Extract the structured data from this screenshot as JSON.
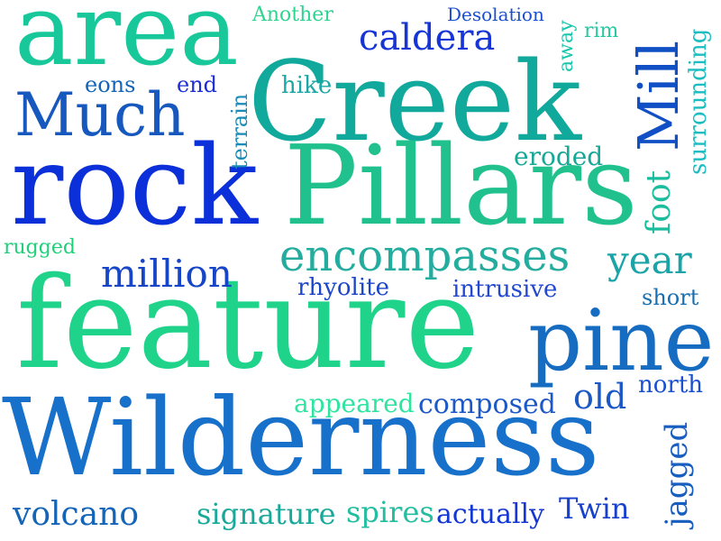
{
  "words": {
    "area": {
      "text": "area",
      "color": "#18c89a"
    },
    "Another": {
      "text": "Another",
      "color": "#2fd48f"
    },
    "Desolation": {
      "text": "Desolation",
      "color": "#1a4fd1"
    },
    "caldera": {
      "text": "caldera",
      "color": "#1734d6"
    },
    "rim": {
      "text": "rim",
      "color": "#27c7a0"
    },
    "away": {
      "text": "away",
      "color": "#19c6ab"
    },
    "Creek": {
      "text": "Creek",
      "color": "#10a99b"
    },
    "Mill": {
      "text": "Mill",
      "color": "#1150c4"
    },
    "surrounding": {
      "text": "surrounding",
      "color": "#1bbdc0"
    },
    "eons": {
      "text": "eons",
      "color": "#1464b8"
    },
    "end": {
      "text": "end",
      "color": "#1d2fd2"
    },
    "hike": {
      "text": "hike",
      "color": "#1ba7a5"
    },
    "Much": {
      "text": "Much",
      "color": "#1658be"
    },
    "terrain": {
      "text": "terrain",
      "color": "#1a8bb7"
    },
    "eroded": {
      "text": "eroded",
      "color": "#17a796"
    },
    "foot": {
      "text": "foot",
      "color": "#1cbd9f"
    },
    "rock": {
      "text": "rock",
      "color": "#0b2fd8"
    },
    "Pillars": {
      "text": "Pillars",
      "color": "#21c18d"
    },
    "rugged": {
      "text": "rugged",
      "color": "#1fd07a"
    },
    "encompasses": {
      "text": "encompasses",
      "color": "#24ad9e"
    },
    "year": {
      "text": "year",
      "color": "#1ba4a7"
    },
    "million": {
      "text": "million",
      "color": "#1745c8"
    },
    "rhyolite": {
      "text": "rhyolite",
      "color": "#1b46c9"
    },
    "intrusive": {
      "text": "intrusive",
      "color": "#2148cf"
    },
    "short": {
      "text": "short",
      "color": "#186fb0"
    },
    "feature": {
      "text": "feature",
      "color": "#1fd38b"
    },
    "pine": {
      "text": "pine",
      "color": "#166cc1"
    },
    "old": {
      "text": "old",
      "color": "#1b58c6"
    },
    "north": {
      "text": "north",
      "color": "#1a4fd0"
    },
    "appeared": {
      "text": "appeared",
      "color": "#2ee5a0"
    },
    "composed": {
      "text": "composed",
      "color": "#1d59c6"
    },
    "Wilderness": {
      "text": "Wilderness",
      "color": "#1770c9"
    },
    "jagged": {
      "text": "jagged",
      "color": "#175ec0"
    },
    "volcano": {
      "text": "volcano",
      "color": "#1464b8"
    },
    "signature": {
      "text": "signature",
      "color": "#1aa89a"
    },
    "spires": {
      "text": "spires",
      "color": "#23bda0"
    },
    "actually": {
      "text": "actually",
      "color": "#1437d3"
    },
    "Twin": {
      "text": "Twin",
      "color": "#1741cc"
    }
  }
}
